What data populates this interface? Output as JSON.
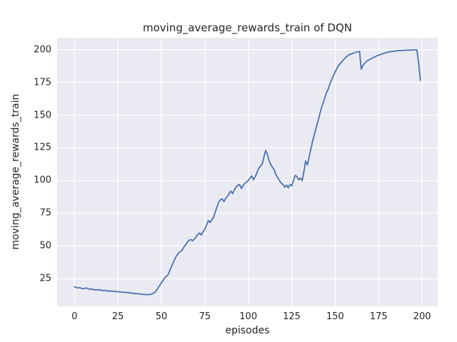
{
  "chart_data": {
    "type": "line",
    "title": "moving_average_rewards_train of DQN",
    "xlabel": "episodes",
    "ylabel": "moving_average_rewards_train",
    "xlim": [
      -10,
      209
    ],
    "ylim": [
      4,
      209
    ],
    "xticks": [
      0,
      25,
      50,
      75,
      100,
      125,
      150,
      175,
      200
    ],
    "yticks": [
      25,
      50,
      75,
      100,
      125,
      150,
      175,
      200
    ],
    "grid": true,
    "legend": "none",
    "colors": {
      "line": "#4c72b0",
      "plot_background": "#eaeaf2",
      "grid": "#ffffff",
      "text": "#262626"
    },
    "points": [
      [
        0,
        19
      ],
      [
        1,
        18.5
      ],
      [
        2,
        18
      ],
      [
        3,
        18.3
      ],
      [
        4,
        17.8
      ],
      [
        5,
        17.5
      ],
      [
        6,
        17.8
      ],
      [
        7,
        18
      ],
      [
        8,
        17.5
      ],
      [
        9,
        17
      ],
      [
        10,
        17.2
      ],
      [
        11,
        16.8
      ],
      [
        12,
        16.5
      ],
      [
        13,
        16.8
      ],
      [
        14,
        16.4
      ],
      [
        15,
        16.6
      ],
      [
        16,
        16.2
      ],
      [
        17,
        16
      ],
      [
        18,
        16.2
      ],
      [
        19,
        15.8
      ],
      [
        20,
        15.6
      ],
      [
        21,
        15.8
      ],
      [
        22,
        15.5
      ],
      [
        23,
        15.6
      ],
      [
        24,
        15.3
      ],
      [
        25,
        15.1
      ],
      [
        26,
        15.2
      ],
      [
        27,
        14.9
      ],
      [
        28,
        14.7
      ],
      [
        29,
        14.8
      ],
      [
        30,
        14.5
      ],
      [
        31,
        14.6
      ],
      [
        32,
        14.3
      ],
      [
        33,
        14.1
      ],
      [
        34,
        13.9
      ],
      [
        35,
        13.7
      ],
      [
        36,
        13.8
      ],
      [
        37,
        13.5
      ],
      [
        38,
        13.4
      ],
      [
        39,
        13.2
      ],
      [
        40,
        13.1
      ],
      [
        41,
        13
      ],
      [
        42,
        12.9
      ],
      [
        43,
        13
      ],
      [
        44,
        13.2
      ],
      [
        45,
        13.8
      ],
      [
        46,
        14.5
      ],
      [
        47,
        16
      ],
      [
        48,
        18
      ],
      [
        49,
        20
      ],
      [
        50,
        22
      ],
      [
        51,
        24
      ],
      [
        52,
        26
      ],
      [
        53,
        27
      ],
      [
        54,
        28.5
      ],
      [
        55,
        32
      ],
      [
        56,
        35
      ],
      [
        57,
        38
      ],
      [
        58,
        41
      ],
      [
        59,
        43
      ],
      [
        60,
        45
      ],
      [
        61,
        46
      ],
      [
        62,
        47
      ],
      [
        63,
        49.5
      ],
      [
        64,
        51
      ],
      [
        65,
        53
      ],
      [
        66,
        54.5
      ],
      [
        67,
        55
      ],
      [
        68,
        54
      ],
      [
        69,
        55.5
      ],
      [
        70,
        57
      ],
      [
        71,
        59
      ],
      [
        72,
        60
      ],
      [
        73,
        58.5
      ],
      [
        74,
        61
      ],
      [
        75,
        63
      ],
      [
        76,
        66
      ],
      [
        77,
        69.5
      ],
      [
        78,
        68
      ],
      [
        79,
        70
      ],
      [
        80,
        72
      ],
      [
        81,
        76
      ],
      [
        82,
        80
      ],
      [
        83,
        83.5
      ],
      [
        84,
        85.5
      ],
      [
        85,
        86
      ],
      [
        86,
        84
      ],
      [
        87,
        86.5
      ],
      [
        88,
        88
      ],
      [
        89,
        90
      ],
      [
        90,
        92
      ],
      [
        91,
        90
      ],
      [
        92,
        93
      ],
      [
        93,
        95
      ],
      [
        94,
        96.5
      ],
      [
        95,
        97
      ],
      [
        96,
        94
      ],
      [
        97,
        96
      ],
      [
        98,
        98
      ],
      [
        99,
        99
      ],
      [
        100,
        100
      ],
      [
        101,
        102
      ],
      [
        102,
        103.5
      ],
      [
        103,
        100.5
      ],
      [
        104,
        103
      ],
      [
        105,
        106
      ],
      [
        106,
        109.5
      ],
      [
        107,
        111
      ],
      [
        108,
        112.5
      ],
      [
        109,
        118
      ],
      [
        110,
        123
      ],
      [
        111,
        120
      ],
      [
        112,
        115
      ],
      [
        113,
        112
      ],
      [
        114,
        110
      ],
      [
        115,
        108
      ],
      [
        116,
        104
      ],
      [
        117,
        102
      ],
      [
        118,
        100
      ],
      [
        119,
        98
      ],
      [
        120,
        97
      ],
      [
        121,
        95
      ],
      [
        122,
        96.5
      ],
      [
        123,
        94.5
      ],
      [
        124,
        97
      ],
      [
        125,
        96
      ],
      [
        126,
        100
      ],
      [
        127,
        104
      ],
      [
        128,
        103
      ],
      [
        129,
        100.5
      ],
      [
        130,
        102
      ],
      [
        131,
        100
      ],
      [
        132,
        107
      ],
      [
        133,
        115
      ],
      [
        134,
        112
      ],
      [
        135,
        118
      ],
      [
        136,
        124
      ],
      [
        137,
        130
      ],
      [
        138,
        135
      ],
      [
        139,
        140
      ],
      [
        140,
        145
      ],
      [
        141,
        150
      ],
      [
        142,
        155
      ],
      [
        143,
        159
      ],
      [
        144,
        163
      ],
      [
        145,
        167
      ],
      [
        146,
        170
      ],
      [
        147,
        174
      ],
      [
        148,
        177
      ],
      [
        149,
        180
      ],
      [
        150,
        183
      ],
      [
        151,
        185.5
      ],
      [
        152,
        188
      ],
      [
        153,
        189.5
      ],
      [
        154,
        191
      ],
      [
        155,
        192.5
      ],
      [
        156,
        194
      ],
      [
        157,
        195
      ],
      [
        158,
        196
      ],
      [
        159,
        196.5
      ],
      [
        160,
        197
      ],
      [
        161,
        197.5
      ],
      [
        162,
        198
      ],
      [
        163,
        198.3
      ],
      [
        164,
        198.6
      ],
      [
        165,
        185
      ],
      [
        166,
        188
      ],
      [
        167,
        189.5
      ],
      [
        168,
        191
      ],
      [
        169,
        191.8
      ],
      [
        170,
        192.5
      ],
      [
        171,
        193.2
      ],
      [
        172,
        194
      ],
      [
        173,
        194.6
      ],
      [
        174,
        195.2
      ],
      [
        175,
        195.7
      ],
      [
        176,
        196.2
      ],
      [
        177,
        196.7
      ],
      [
        178,
        197.1
      ],
      [
        179,
        197.5
      ],
      [
        180,
        197.9
      ],
      [
        181,
        198.2
      ],
      [
        182,
        198.4
      ],
      [
        183,
        198.6
      ],
      [
        184,
        198.8
      ],
      [
        185,
        199
      ],
      [
        186,
        199.1
      ],
      [
        187,
        199.2
      ],
      [
        188,
        199.3
      ],
      [
        189,
        199.4
      ],
      [
        190,
        199.5
      ],
      [
        191,
        199.5
      ],
      [
        192,
        199.6
      ],
      [
        193,
        199.6
      ],
      [
        194,
        199.7
      ],
      [
        195,
        199.7
      ],
      [
        196,
        199.8
      ],
      [
        197,
        199.8
      ],
      [
        198,
        190
      ],
      [
        199,
        176.5
      ]
    ]
  }
}
